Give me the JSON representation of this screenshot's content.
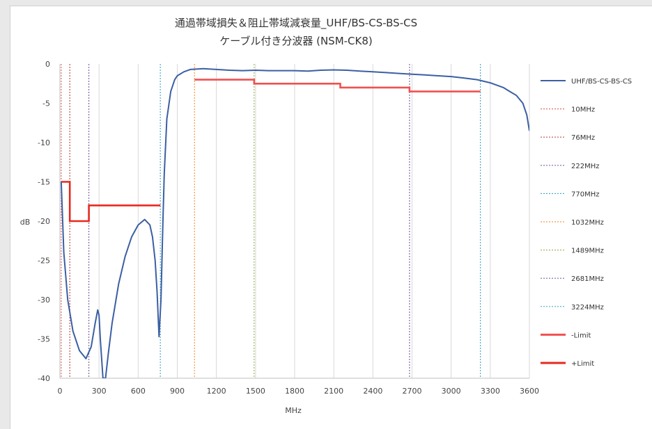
{
  "chart_data": {
    "type": "line",
    "title": "通過帯域損失＆阻止帯域減衰量_UHF/BS-CS-BS-CS",
    "subtitle": "ケーブル付き分波器 (NSM-CK8)",
    "xlabel": "MHz",
    "ylabel": "dB",
    "xlim": [
      0,
      3600
    ],
    "ylim": [
      -40,
      0
    ],
    "x_ticks": [
      "0",
      "300",
      "600",
      "900",
      "1200",
      "1500",
      "1800",
      "2100",
      "2400",
      "2700",
      "3000",
      "3300",
      "3600"
    ],
    "y_ticks": [
      "0",
      "-5",
      "-10",
      "-15",
      "-20",
      "-25",
      "-30",
      "-35",
      "-40"
    ],
    "grid": "vertical",
    "legend_position": "right",
    "series": [
      {
        "name": "UHF/BS-CS-BS-CS",
        "color": "#3b5fa3",
        "style": "solid",
        "x": [
          10,
          30,
          60,
          100,
          150,
          200,
          240,
          270,
          290,
          300,
          310,
          330,
          350,
          370,
          400,
          450,
          500,
          550,
          600,
          650,
          690,
          710,
          730,
          745,
          760,
          775,
          790,
          800,
          820,
          850,
          880,
          900,
          950,
          1000,
          1100,
          1200,
          1300,
          1400,
          1500,
          1600,
          1700,
          1800,
          1900,
          2000,
          2100,
          2200,
          2300,
          2400,
          2500,
          2600,
          2700,
          2800,
          2900,
          3000,
          3100,
          3200,
          3300,
          3400,
          3450,
          3500,
          3550,
          3580,
          3600
        ],
        "y": [
          -15,
          -24,
          -30,
          -34,
          -36.5,
          -37.5,
          -36,
          -33,
          -31.3,
          -32,
          -35,
          -40,
          -40,
          -37,
          -33,
          -28,
          -24.5,
          -22,
          -20.5,
          -19.8,
          -20.5,
          -22,
          -25,
          -29,
          -34.7,
          -30,
          -20,
          -14,
          -7,
          -3.5,
          -2,
          -1.5,
          -1,
          -0.7,
          -0.6,
          -0.7,
          -0.8,
          -0.85,
          -0.8,
          -0.85,
          -0.85,
          -0.85,
          -0.9,
          -0.8,
          -0.75,
          -0.8,
          -0.9,
          -1.0,
          -1.1,
          -1.2,
          -1.3,
          -1.4,
          -1.5,
          -1.6,
          -1.8,
          -2.0,
          -2.4,
          -3.0,
          -3.5,
          -4.0,
          -5.0,
          -6.5,
          -8.5
        ]
      },
      {
        "name": "10MHz",
        "color": "#e06a6a",
        "style": "dotted-vertical",
        "x_value": 10
      },
      {
        "name": "76MHz",
        "color": "#c0504d",
        "style": "dotted-vertical",
        "x_value": 76
      },
      {
        "name": "222MHz",
        "color": "#8064a2",
        "style": "dotted-vertical",
        "x_value": 222
      },
      {
        "name": "770MHz",
        "color": "#4bacc6",
        "style": "dotted-vertical",
        "x_value": 770
      },
      {
        "name": "1032MHz",
        "color": "#f79646",
        "style": "dotted-vertical",
        "x_value": 1032
      },
      {
        "name": "1489MHz",
        "color": "#9bbb59",
        "style": "dotted-vertical",
        "x_value": 1489
      },
      {
        "name": "2681MHz",
        "color": "#8064a2",
        "style": "dotted-vertical",
        "x_value": 2681
      },
      {
        "name": "3224MHz",
        "color": "#4bacc6",
        "style": "dotted-vertical",
        "x_value": 3224
      },
      {
        "name": "-Limit",
        "color": "#f05050",
        "style": "step",
        "x": [
          1032,
          1489,
          1489,
          2150,
          2150,
          2681,
          2681,
          3224
        ],
        "y": [
          -2.0,
          -2.0,
          -2.5,
          -2.5,
          -3.0,
          -3.0,
          -3.5,
          -3.5
        ]
      },
      {
        "name": "+Limit",
        "color": "#e8281e",
        "style": "step",
        "x": [
          10,
          76,
          76,
          222,
          222,
          770
        ],
        "y": [
          -15,
          -15,
          -20,
          -20,
          -18,
          -18
        ]
      }
    ]
  }
}
